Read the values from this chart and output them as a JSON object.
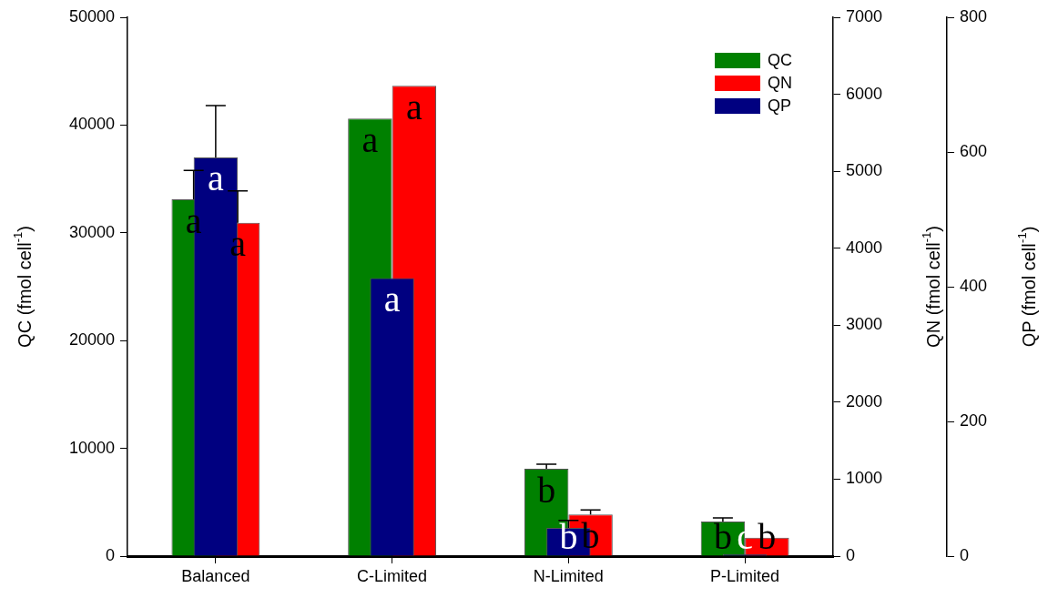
{
  "chart_data": {
    "type": "bar",
    "categories": [
      "Balanced",
      "C-Limited",
      "N-Limited",
      "P-Limited"
    ],
    "ylabel": "QC (fmol cell$^{-1}$)",
    "y2label": "QN (fmol cell$^{-1}$)",
    "y3label": "QP (fmol cell$^{-1}$)",
    "ylim": [
      0,
      50000
    ],
    "yticks": [
      0,
      10000,
      20000,
      30000,
      40000,
      50000
    ],
    "y2lim": [
      0,
      7000
    ],
    "y2ticks": [
      0,
      1000,
      2000,
      3000,
      4000,
      5000,
      6000,
      7000
    ],
    "y3lim": [
      0,
      800
    ],
    "y3ticks": [
      0,
      200,
      400,
      600,
      800
    ],
    "series": [
      {
        "name": "QC",
        "color": "#008000",
        "axis": "y",
        "values": [
          33100,
          40600,
          8100,
          3200
        ],
        "errors": [
          2700,
          null,
          430,
          340
        ],
        "value_labels": [
          "a",
          "a",
          "b",
          "b"
        ]
      },
      {
        "name": "QN",
        "color": "#ff0000",
        "axis": "y2",
        "values": [
          4330,
          6110,
          540,
          240
        ],
        "errors": [
          414,
          null,
          60,
          null
        ],
        "value_labels": [
          "a",
          "a",
          "b",
          "b"
        ]
      },
      {
        "name": "QP",
        "color": "#000080",
        "axis": "y3",
        "values": [
          592,
          413,
          42,
          3
        ],
        "errors": [
          77,
          null,
          11,
          null
        ],
        "value_labels": [
          "a",
          "a",
          "b",
          "c"
        ]
      }
    ],
    "legend": "top right"
  }
}
